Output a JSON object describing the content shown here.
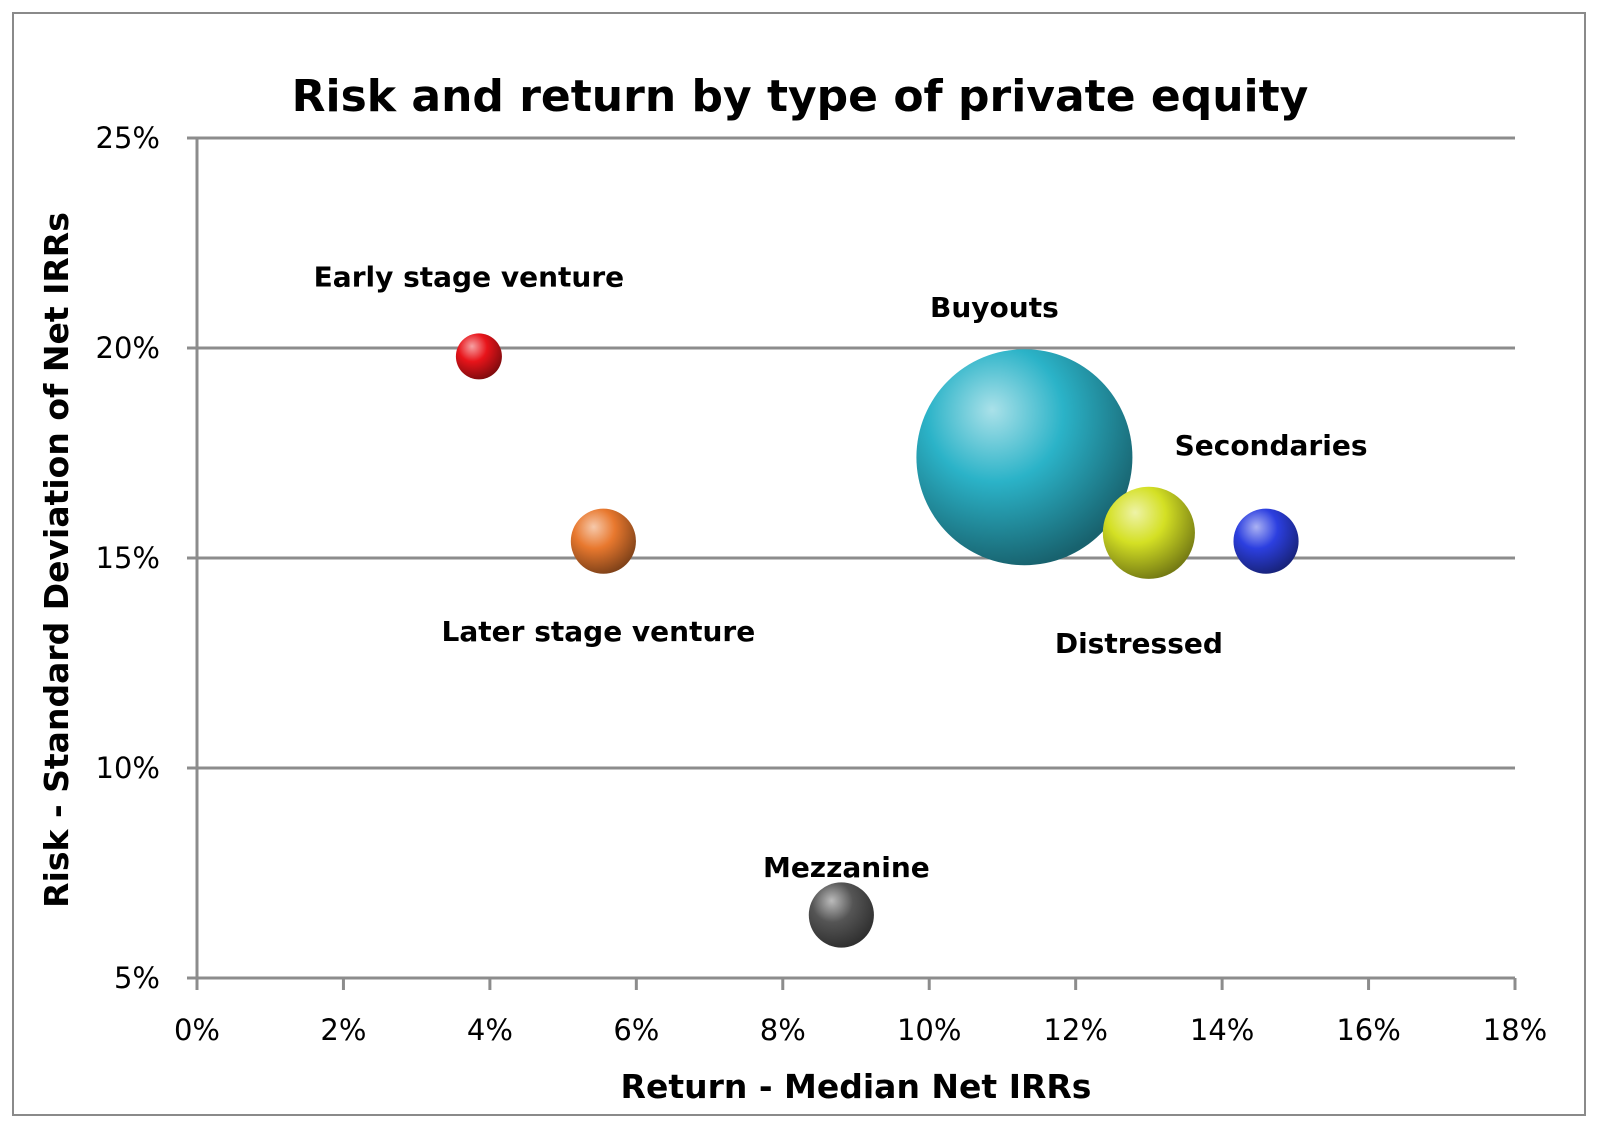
{
  "chart_data": {
    "type": "bubble",
    "title": "Risk and return by type of private equity",
    "xlabel": "Return - Median Net IRRs",
    "ylabel": "Risk - Standard Deviation of Net IRRs",
    "xlim": [
      0,
      18
    ],
    "ylim": [
      5,
      25
    ],
    "x_ticks": [
      "0%",
      "2%",
      "4%",
      "6%",
      "8%",
      "10%",
      "12%",
      "14%",
      "16%",
      "18%"
    ],
    "y_ticks": [
      "5%",
      "10%",
      "15%",
      "20%",
      "25%"
    ],
    "grid": "horizontal",
    "legend": "none",
    "series": [
      {
        "name": "Early stage venture",
        "x": 3.85,
        "y": 19.8,
        "size": 2,
        "color": "#e8141a"
      },
      {
        "name": "Later stage venture",
        "x": 5.55,
        "y": 15.4,
        "size": 4,
        "color": "#e8782e"
      },
      {
        "name": "Buyouts",
        "x": 11.3,
        "y": 17.4,
        "size": 44,
        "color": "#2bb3c8"
      },
      {
        "name": "Distressed",
        "x": 13.0,
        "y": 15.6,
        "size": 8,
        "color": "#d4e024"
      },
      {
        "name": "Secondaries",
        "x": 14.6,
        "y": 15.4,
        "size": 4,
        "color": "#2c3fe0"
      },
      {
        "name": "Mezzanine",
        "x": 8.8,
        "y": 6.5,
        "size": 4,
        "color": "#555555"
      }
    ]
  }
}
